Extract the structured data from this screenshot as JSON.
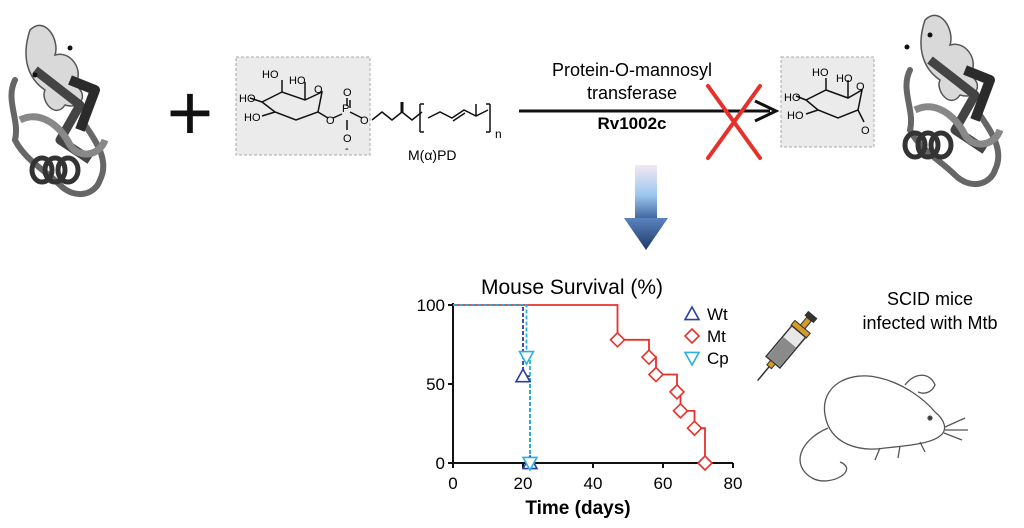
{
  "reaction": {
    "enzyme_line1": "Protein-O-mannosyl",
    "enzyme_line2": "transferase",
    "enzyme_name": "Rv1002c",
    "plus_sign": "+",
    "substrate": {
      "label": "M(α)PD",
      "ho_1": "HO",
      "ho_2": "HO",
      "ho_3": "HO",
      "ho_4": "HO",
      "ring_o": "O",
      "phosphorus": "P",
      "p_o_link_1": "O",
      "p_o_link_2": "O",
      "p_oxo": "O",
      "p_o_minus": "O",
      "minus": "-",
      "repeat_n": "n"
    },
    "product": {
      "ho_1": "HO",
      "ho_2": "HO",
      "ho_3": "HO",
      "ho_4": "HO",
      "ring_o": "O",
      "link_o": "O"
    },
    "blocked_marker_color": "#e8302a"
  },
  "annotation": {
    "model_line1": "SCID mice",
    "model_line2": "infected with Mtb"
  },
  "chart_data": {
    "type": "line",
    "title": "Mouse Survival (%)",
    "xlabel": "Time (days)",
    "ylabel": "",
    "xlim": [
      0,
      80
    ],
    "ylim": [
      0,
      100
    ],
    "xticks": [
      "0",
      "20",
      "40",
      "60",
      "80"
    ],
    "yticks": [
      "0",
      "50",
      "100"
    ],
    "legend_position": "top-right",
    "series": [
      {
        "name": "Wt",
        "color": "#2a3f9e",
        "marker": "triangle-up",
        "x": [
          0,
          20,
          20,
          22,
          22
        ],
        "y": [
          100,
          100,
          55,
          55,
          0
        ],
        "marker_points": [
          [
            20,
            55
          ],
          [
            22,
            0
          ]
        ]
      },
      {
        "name": "Mt",
        "color": "#e8302a",
        "marker": "diamond",
        "x": [
          0,
          47,
          47,
          56,
          56,
          58,
          58,
          64,
          64,
          65,
          65,
          69,
          69,
          72,
          72
        ],
        "y": [
          100,
          100,
          78,
          78,
          67,
          67,
          56,
          56,
          45,
          45,
          33,
          33,
          22,
          22,
          0
        ],
        "marker_points": [
          [
            47,
            78
          ],
          [
            56,
            67
          ],
          [
            58,
            56
          ],
          [
            64,
            45
          ],
          [
            65,
            33
          ],
          [
            69,
            22
          ],
          [
            72,
            0
          ]
        ]
      },
      {
        "name": "Cp",
        "color": "#2ab0e0",
        "marker": "triangle-down",
        "x": [
          0,
          21,
          21,
          22,
          22
        ],
        "y": [
          100,
          100,
          67,
          67,
          0
        ],
        "marker_points": [
          [
            21,
            67
          ],
          [
            22,
            0
          ]
        ]
      }
    ]
  }
}
